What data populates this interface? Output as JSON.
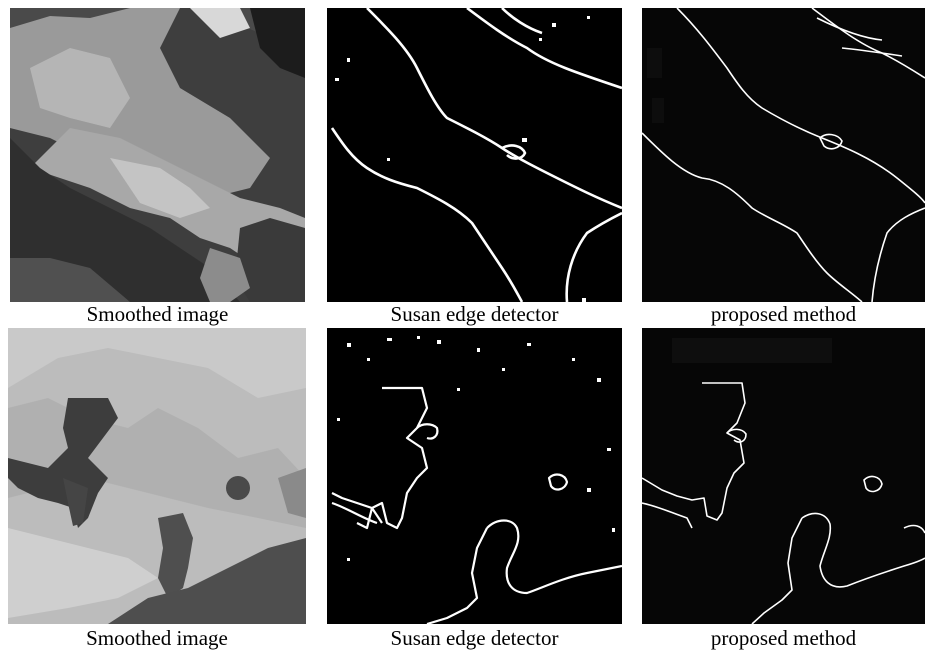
{
  "figure": {
    "row1": {
      "smoothed_caption": "Smoothed image",
      "susan_caption": "Susan edge detector",
      "proposed_caption": "proposed method"
    },
    "row2": {
      "smoothed_caption": "Smoothed image",
      "susan_caption": "Susan edge detector",
      "proposed_caption": "proposed method"
    }
  },
  "colors": {
    "edge": "#ffffff",
    "background_dark": "#000000",
    "proposed_bg": "#060606"
  }
}
